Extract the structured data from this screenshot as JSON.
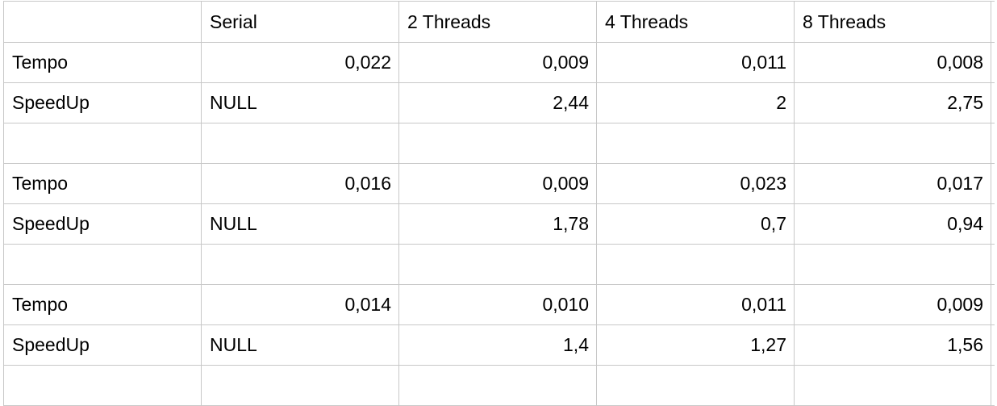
{
  "table": {
    "header": [
      "",
      "Serial",
      "2 Threads",
      "4 Threads",
      "8 Threads"
    ],
    "rows": [
      {
        "label": "Tempo",
        "cells": [
          "0,022",
          "0,009",
          "0,011",
          "0,008"
        ]
      },
      {
        "label": "SpeedUp",
        "cells": [
          "NULL",
          "2,44",
          "2",
          "2,75"
        ]
      },
      {
        "label": "",
        "cells": [
          "",
          "",
          "",
          ""
        ]
      },
      {
        "label": "Tempo",
        "cells": [
          "0,016",
          "0,009",
          "0,023",
          "0,017"
        ]
      },
      {
        "label": "SpeedUp",
        "cells": [
          "NULL",
          "1,78",
          "0,7",
          "0,94"
        ]
      },
      {
        "label": "",
        "cells": [
          "",
          "",
          "",
          ""
        ]
      },
      {
        "label": "Tempo",
        "cells": [
          "0,014",
          "0,010",
          "0,011",
          "0,009"
        ]
      },
      {
        "label": "SpeedUp",
        "cells": [
          "NULL",
          "1,4",
          "1,27",
          "1,56"
        ]
      },
      {
        "label": "",
        "cells": [
          "",
          "",
          "",
          ""
        ]
      }
    ]
  }
}
